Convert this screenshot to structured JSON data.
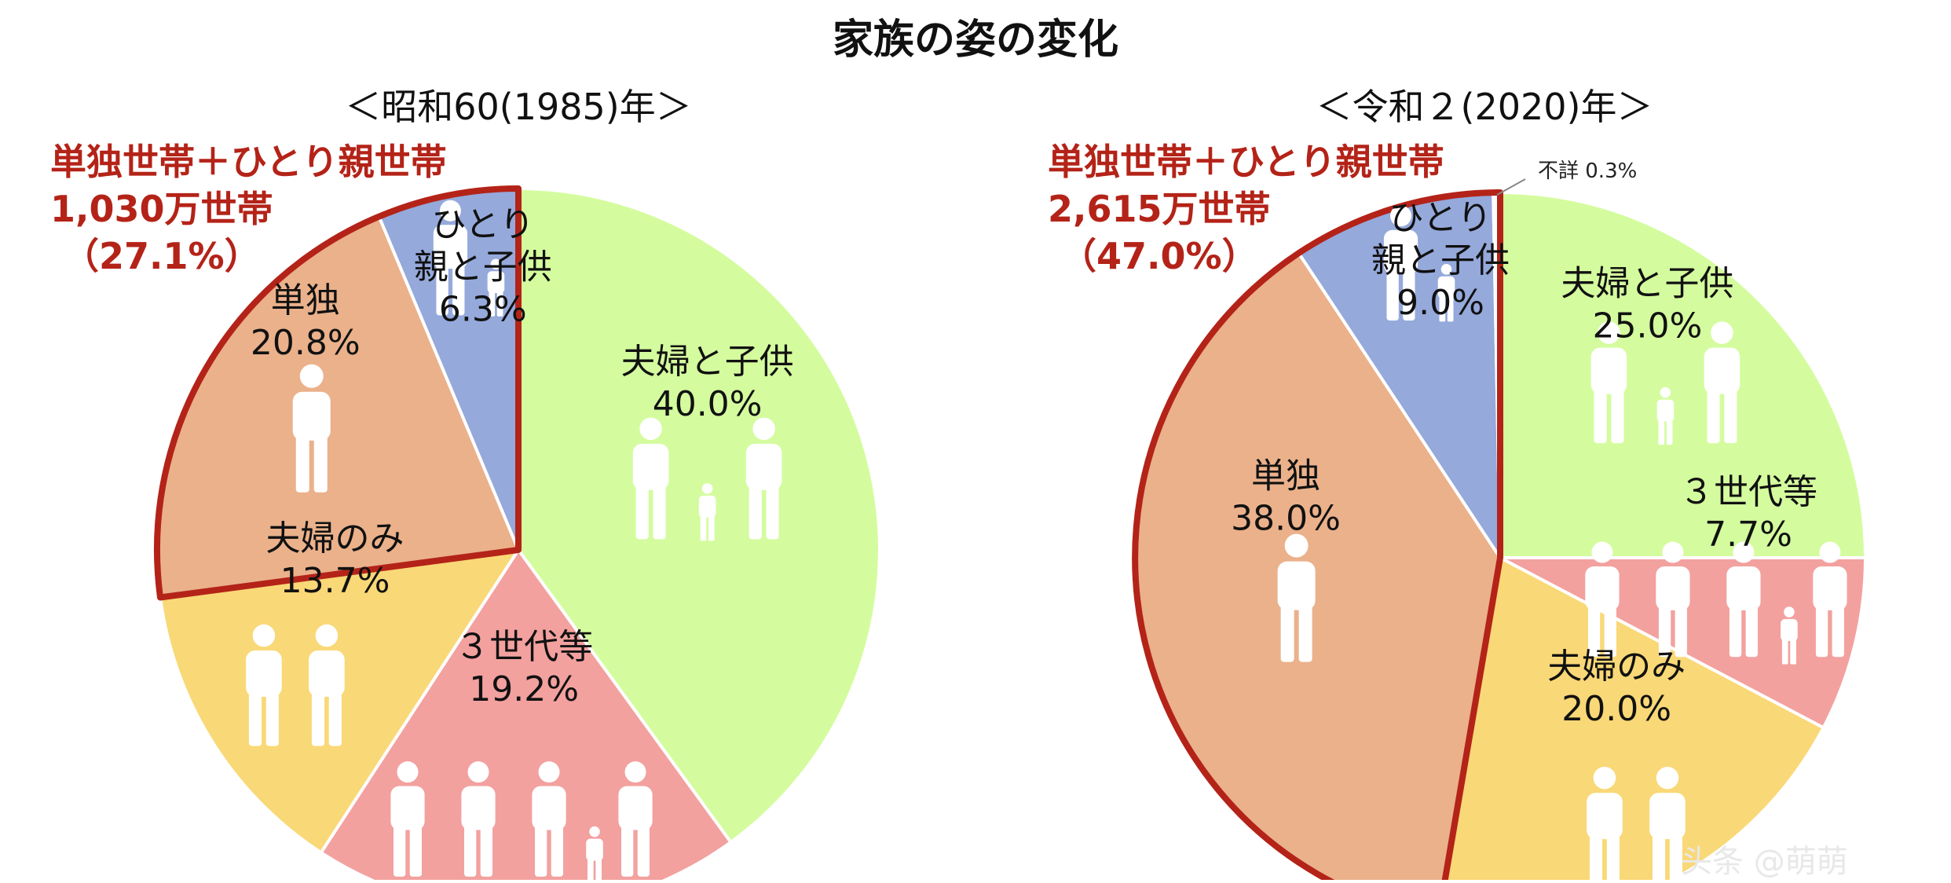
{
  "title": "家族の姿の変化",
  "watermark": "头条 @萌萌",
  "charts": [
    {
      "subtitle": "＜昭和60(1985)年＞",
      "highlight": {
        "line1": "単独世帯＋ひとり親世帯",
        "line2": "1,030万世帯",
        "line3": "（27.1%）"
      },
      "note": ""
    },
    {
      "subtitle": "＜令和２(2020)年＞",
      "highlight": {
        "line1": "単独世帯＋ひとり親世帯",
        "line2": "2,615万世帯",
        "line3": "（47.0%）"
      },
      "note": "不詳 0.3%"
    }
  ],
  "chart_data": [
    {
      "type": "pie",
      "title": "＜昭和60(1985)年＞",
      "start": "12 o'clock, clockwise",
      "slices": [
        {
          "label": [
            "夫婦と子供"
          ],
          "value": 40.0,
          "pct": "40.0%",
          "color": "#d4fc9e",
          "figures": "family"
        },
        {
          "label": [
            "３世代等"
          ],
          "value": 19.2,
          "pct": "19.2%",
          "color": "#f2a19f",
          "figures": "three-gen"
        },
        {
          "label": [
            "夫婦のみ"
          ],
          "value": 13.7,
          "pct": "13.7%",
          "color": "#f9d877",
          "figures": "couple"
        },
        {
          "label": [
            "単独"
          ],
          "value": 20.8,
          "pct": "20.8%",
          "color": "#eab18b",
          "figures": "single"
        },
        {
          "label": [
            "ひとり",
            "親と子供"
          ],
          "value": 6.3,
          "pct": "6.3%",
          "color": "#95a9db",
          "figures": "single-parent"
        }
      ]
    },
    {
      "type": "pie",
      "title": "＜令和２(2020)年＞",
      "start": "12 o'clock, clockwise",
      "slices": [
        {
          "label": [
            "夫婦と子供"
          ],
          "value": 25.0,
          "pct": "25.0%",
          "color": "#d4fc9e",
          "figures": "family"
        },
        {
          "label": [
            "３世代等"
          ],
          "value": 7.7,
          "pct": "7.7%",
          "color": "#f2a19f",
          "figures": "three-gen"
        },
        {
          "label": [
            "夫婦のみ"
          ],
          "value": 20.0,
          "pct": "20.0%",
          "color": "#f9d877",
          "figures": "couple"
        },
        {
          "label": [
            "単独"
          ],
          "value": 38.0,
          "pct": "38.0%",
          "color": "#eab18b",
          "figures": "single"
        },
        {
          "label": [
            "ひとり",
            "親と子供"
          ],
          "value": 9.0,
          "pct": "9.0%",
          "color": "#95a9db",
          "figures": "single-parent"
        },
        {
          "label": [
            "不詳"
          ],
          "value": 0.3,
          "pct": "0.3%",
          "color": "#ffffff",
          "figures": "none"
        }
      ]
    }
  ]
}
